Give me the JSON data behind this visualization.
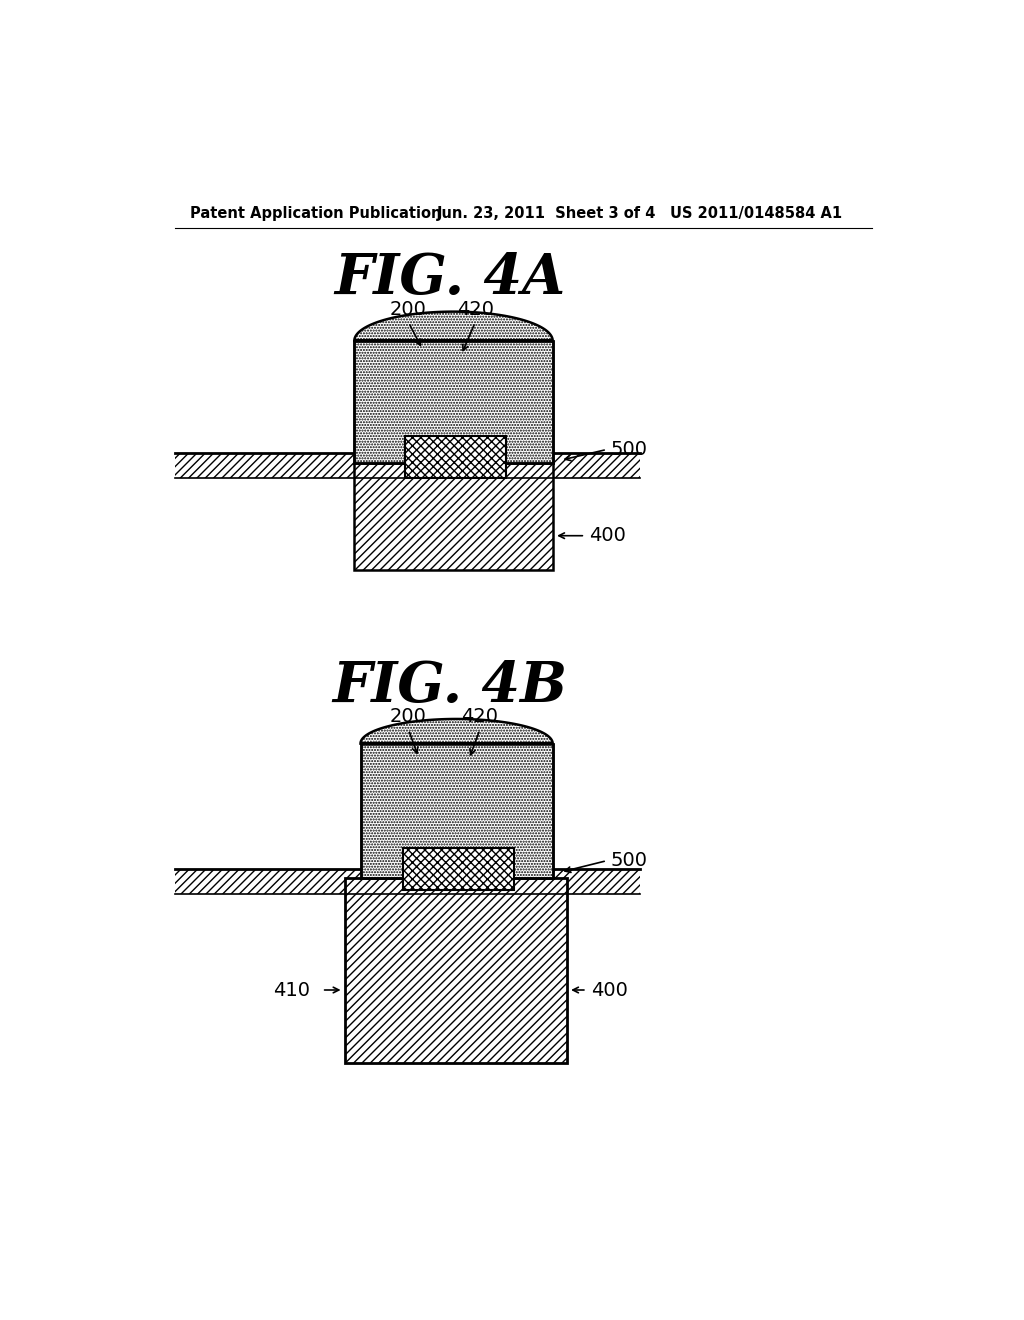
{
  "bg_color": "#ffffff",
  "line_color": "#000000",
  "hatch_color": "#000000",
  "fig4a_title": "FIG. 4A",
  "fig4b_title": "FIG. 4B",
  "header_left": "Patent Application Publication",
  "header_mid": "Jun. 23, 2011  Sheet 3 of 4",
  "header_right": "US 2011/0148584 A1"
}
